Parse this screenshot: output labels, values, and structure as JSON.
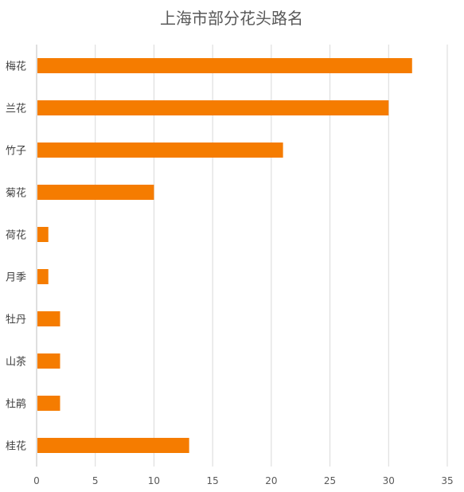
{
  "chart_data": {
    "type": "bar",
    "orientation": "horizontal",
    "title": "上海市部分花头路名",
    "xlabel": "",
    "ylabel": "",
    "categories": [
      "梅花",
      "兰花",
      "竹子",
      "菊花",
      "荷花",
      "月季",
      "牡丹",
      "山茶",
      "杜鹃",
      "桂花"
    ],
    "values": [
      32,
      30,
      21,
      10,
      1,
      1,
      2,
      2,
      2,
      13
    ],
    "xlim": [
      0,
      35
    ],
    "xticks": [
      "0",
      "5",
      "10",
      "15",
      "20",
      "25",
      "30",
      "35"
    ],
    "grid": true,
    "legend": "none",
    "bar_color": "#f57c00"
  }
}
